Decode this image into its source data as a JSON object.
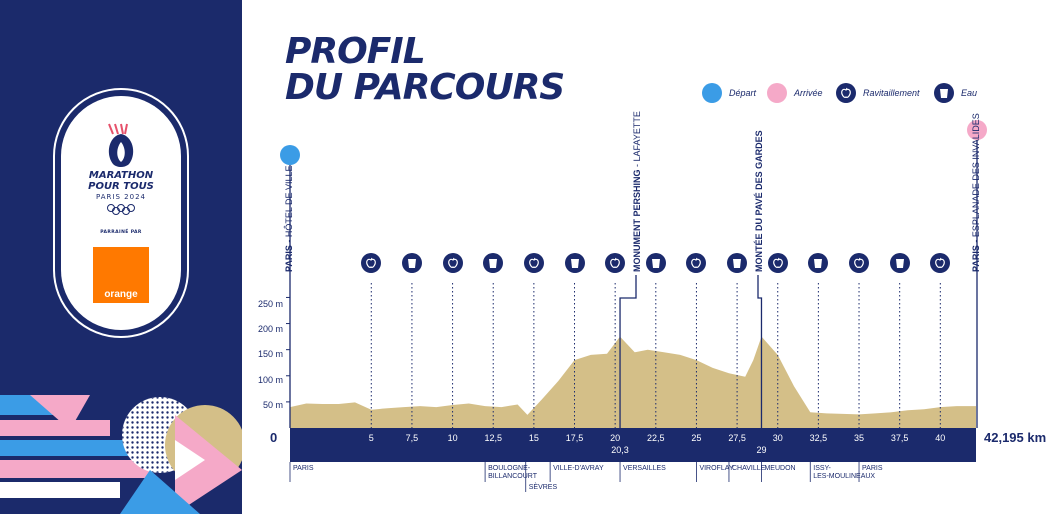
{
  "colors": {
    "navy": "#1b2a6c",
    "sand": "#d4bf88",
    "depart": "#3b9ce6",
    "arrivee": "#f5a9c8",
    "orange": "#ff7900"
  },
  "title": {
    "line1": "PROFIL",
    "line2": "DU PARCOURS"
  },
  "brand": {
    "line1": "MARATHON",
    "line2": "POUR TOUS",
    "line3": "PARIS 2024",
    "sponsor": "PARRAINÉ PAR",
    "sponsor_logo": "orange"
  },
  "legend": [
    {
      "label": "Départ",
      "icon": "depart-dot"
    },
    {
      "label": "Arrivée",
      "icon": "arrivee-dot"
    },
    {
      "label": "Ravitaillement",
      "icon": "apple-icon"
    },
    {
      "label": "Eau",
      "icon": "cup-icon"
    }
  ],
  "landmarks": {
    "start_bold": "PARIS",
    "start_rest": " - HÔTEL DE VILLE",
    "pershing_bold": "MONUMENT PERSHING",
    "pershing_rest": " - LAFAYETTE",
    "pave": "MONTÉE DU PAVÉ DES GARDES",
    "end_bold": "PARIS",
    "end_rest": " - ESPLANADE DES INVALIDES"
  },
  "stations": [
    {
      "km": 5,
      "type": "ravitaillement"
    },
    {
      "km": 7.5,
      "type": "eau"
    },
    {
      "km": 10,
      "type": "ravitaillement"
    },
    {
      "km": 12.5,
      "type": "eau"
    },
    {
      "km": 15,
      "type": "ravitaillement"
    },
    {
      "km": 17.5,
      "type": "eau"
    },
    {
      "km": 20,
      "type": "ravitaillement"
    },
    {
      "km": 22.5,
      "type": "eau"
    },
    {
      "km": 25,
      "type": "ravitaillement"
    },
    {
      "km": 27.5,
      "type": "eau"
    },
    {
      "km": 30,
      "type": "ravitaillement"
    },
    {
      "km": 32.5,
      "type": "eau"
    },
    {
      "km": 35,
      "type": "ravitaillement"
    },
    {
      "km": 37.5,
      "type": "eau"
    },
    {
      "km": 40,
      "type": "ravitaillement"
    }
  ],
  "chart_data": {
    "type": "area",
    "ylabel_ticks": [
      "50 m",
      "100 m",
      "150 m",
      "200 m",
      "250 m"
    ],
    "ylim": [
      0,
      270
    ],
    "xlim": [
      0,
      42.195
    ],
    "x_ticks": [
      "5",
      "7,5",
      "10",
      "12,5",
      "15",
      "17,5",
      "20",
      "22,5",
      "25",
      "27,5",
      "30",
      "32,5",
      "35",
      "37,5",
      "40"
    ],
    "x_ticks_values": [
      5,
      7.5,
      10,
      12.5,
      15,
      17.5,
      20,
      22.5,
      25,
      27.5,
      30,
      32.5,
      35,
      37.5,
      40
    ],
    "x_extra": [
      {
        "label": "20,3",
        "value": 20.3
      },
      {
        "label": "29",
        "value": 29
      }
    ],
    "start_label": "0",
    "end_label": "42,195 km",
    "x": [
      0,
      1,
      2,
      3,
      4,
      5,
      6,
      7,
      8,
      9,
      10,
      11,
      12,
      13,
      14,
      14.6,
      15.5,
      16.5,
      17.5,
      18.5,
      19.5,
      20.3,
      21.2,
      22,
      23,
      24,
      25,
      26,
      27,
      28,
      28.5,
      29,
      30,
      31,
      32,
      33,
      34,
      35,
      36,
      37,
      38,
      39,
      40,
      41,
      42.195
    ],
    "y": [
      40,
      47,
      46,
      46,
      49,
      35,
      38,
      40,
      42,
      40,
      44,
      47,
      42,
      40,
      45,
      25,
      55,
      90,
      130,
      140,
      142,
      175,
      145,
      150,
      145,
      140,
      130,
      115,
      105,
      98,
      130,
      175,
      140,
      80,
      30,
      28,
      27,
      26,
      28,
      30,
      34,
      36,
      40,
      42,
      42
    ]
  },
  "towns": [
    {
      "label": "PARIS",
      "km": 0
    },
    {
      "label": "BOULOGNE-BILLANCOURT",
      "km": 12
    },
    {
      "label": "SÈVRES",
      "km": 14.5
    },
    {
      "label": "VILLE-D'AVRAY",
      "km": 16
    },
    {
      "label": "VERSAILLES",
      "km": 20.3
    },
    {
      "label": "VIROFLAY",
      "km": 25
    },
    {
      "label": "CHAVILLE",
      "km": 27
    },
    {
      "label": "MEUDON",
      "km": 29
    },
    {
      "label": "ISSY-LES-MOULINEAUX",
      "km": 32
    },
    {
      "label": "PARIS",
      "km": 35
    }
  ]
}
